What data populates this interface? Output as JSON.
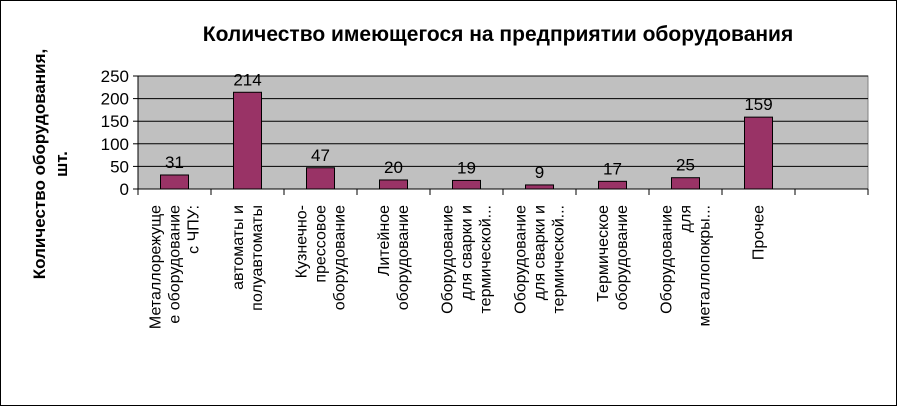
{
  "chart_data": {
    "type": "bar",
    "title": "Количество имеющегося на предприятии оборудования",
    "ylabel": [
      "Количество оборудования,",
      "шт."
    ],
    "xlabel": "",
    "ylim": [
      0,
      250
    ],
    "yticks": [
      0,
      50,
      100,
      150,
      200,
      250
    ],
    "grid": true,
    "legend": "none",
    "categories": [
      [
        "Металлорежуще",
        "е оборудование",
        "с ЧПУ:"
      ],
      [
        "автоматы и",
        "полуавтоматы"
      ],
      [
        "Кузнечно-",
        "прессовое",
        "оборудование"
      ],
      [
        "Литейное",
        "оборудование"
      ],
      [
        "Оборудование",
        "для сварки и",
        "термической..."
      ],
      [
        "Оборудование",
        "для сварки и",
        "термической..."
      ],
      [
        "Термическое",
        "оборудование"
      ],
      [
        "Оборудование",
        "для",
        "металлопокры..."
      ],
      [
        "Прочее"
      ],
      [
        ""
      ]
    ],
    "values": [
      31,
      214,
      47,
      20,
      19,
      9,
      17,
      25,
      159,
      null
    ],
    "colors": {
      "bar": "#993366",
      "plot_background": "#c0c0c0",
      "gridline": "#000000"
    }
  }
}
